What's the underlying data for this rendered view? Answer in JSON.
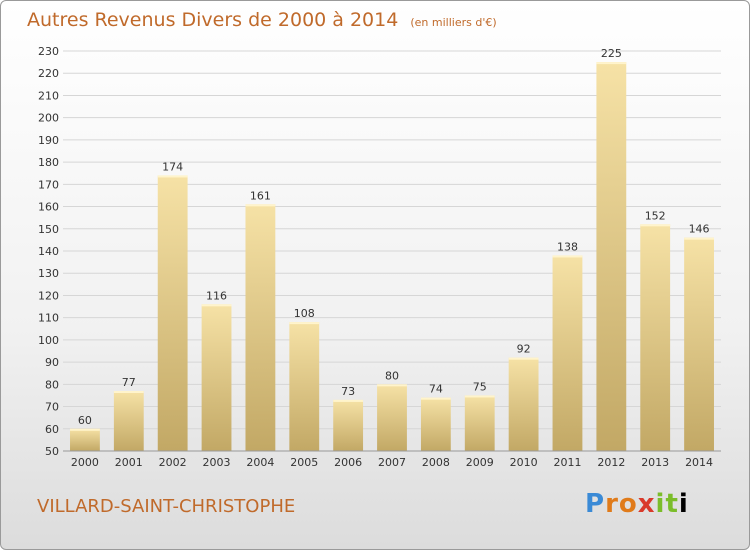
{
  "title": "Autres Revenus Divers de 2000 à 2014",
  "subtitle": "(en milliers d'€)",
  "commune": "VILLARD-SAINT-CHRISTOPHE",
  "logo": [
    "P",
    "r",
    "o",
    "x",
    "i",
    "t",
    "i"
  ],
  "colors": {
    "title": "#c06a2b",
    "bar_light": "#f6e2a6",
    "bar_dark": "#c2a865",
    "grid": "#d6d6d6"
  },
  "chart_data": {
    "type": "bar",
    "categories": [
      "2000",
      "2001",
      "2002",
      "2003",
      "2004",
      "2005",
      "2006",
      "2007",
      "2008",
      "2009",
      "2010",
      "2011",
      "2012",
      "2013",
      "2014"
    ],
    "values": [
      60,
      77,
      174,
      116,
      161,
      108,
      73,
      80,
      74,
      75,
      92,
      138,
      225,
      152,
      146
    ],
    "ylim": [
      50,
      230
    ],
    "ytick_step": 10,
    "grid": true,
    "xlabel": "",
    "ylabel": ""
  }
}
